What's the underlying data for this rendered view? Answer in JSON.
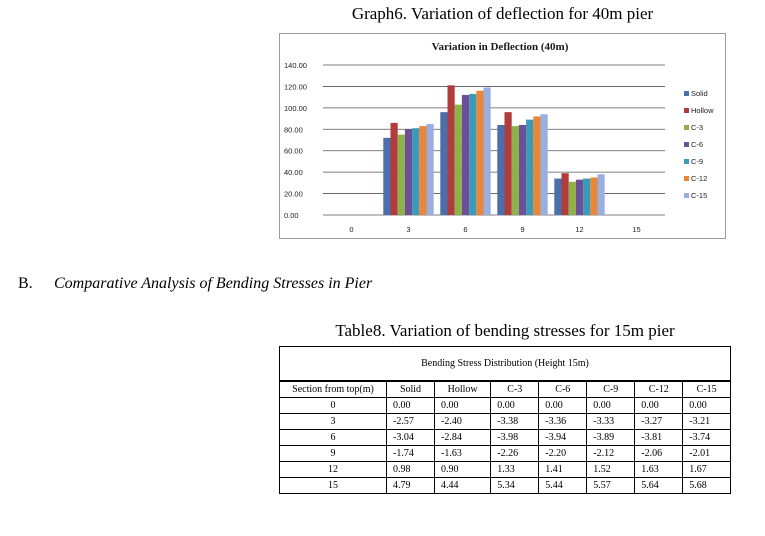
{
  "graph_caption": "Graph6. Variation of deflection for 40m pier",
  "section": {
    "letter": "B.",
    "title": "Comparative Analysis of Bending Stresses in Pier"
  },
  "table_caption": "Table8. Variation of bending stresses for 15m pier",
  "colors": {
    "Solid": "#4a6fab",
    "Hollow": "#b23b3b",
    "C-3": "#8db24a",
    "C-6": "#6c4f97",
    "C-9": "#3a9ab8",
    "C-12": "#e8873a",
    "C-15": "#9aaee0"
  },
  "chart_data": {
    "type": "bar",
    "title": "Variation in Deflection (40m)",
    "categories": [
      "0",
      "3",
      "6",
      "9",
      "12",
      "15"
    ],
    "ylim": [
      0,
      140
    ],
    "yticks": [
      "0.00",
      "20.00",
      "40.00",
      "60.00",
      "80.00",
      "100.00",
      "120.00",
      "140.00"
    ],
    "grid": true,
    "legend_position": "right",
    "series": [
      {
        "name": "Solid",
        "values": [
          0,
          72,
          96,
          84,
          34,
          0
        ]
      },
      {
        "name": "Hollow",
        "values": [
          0,
          86,
          121,
          96,
          39,
          0
        ]
      },
      {
        "name": "C-3",
        "values": [
          0,
          75,
          103,
          83,
          31,
          0
        ]
      },
      {
        "name": "C-6",
        "values": [
          0,
          80,
          112,
          84,
          33,
          0
        ]
      },
      {
        "name": "C-9",
        "values": [
          0,
          81,
          113,
          89,
          34,
          0
        ]
      },
      {
        "name": "C-12",
        "values": [
          0,
          83,
          116,
          92,
          35,
          0
        ]
      },
      {
        "name": "C-15",
        "values": [
          0,
          85,
          119,
          94,
          38,
          0
        ]
      }
    ]
  },
  "table": {
    "title": "Bending Stress Distribution (Height 15m)",
    "headers": [
      "Section from top(m)",
      "Solid",
      "Hollow",
      "C-3",
      "C-6",
      "C-9",
      "C-12",
      "C-15"
    ],
    "rows": [
      [
        "0",
        "0.00",
        "0.00",
        "0.00",
        "0.00",
        "0.00",
        "0.00",
        "0.00"
      ],
      [
        "3",
        "-2.57",
        "-2.40",
        "-3.38",
        "-3.36",
        "-3.33",
        "-3.27",
        "-3.21"
      ],
      [
        "6",
        "-3.04",
        "-2.84",
        "-3.98",
        "-3.94",
        "-3.89",
        "-3.81",
        "-3.74"
      ],
      [
        "9",
        "-1.74",
        "-1.63",
        "-2.26",
        "-2.20",
        "-2.12",
        "-2.06",
        "-2.01"
      ],
      [
        "12",
        "0.98",
        "0.90",
        "1.33",
        "1.41",
        "1.52",
        "1.63",
        "1.67"
      ],
      [
        "15",
        "4.79",
        "4.44",
        "5.34",
        "5.44",
        "5.57",
        "5.64",
        "5.68"
      ]
    ]
  }
}
